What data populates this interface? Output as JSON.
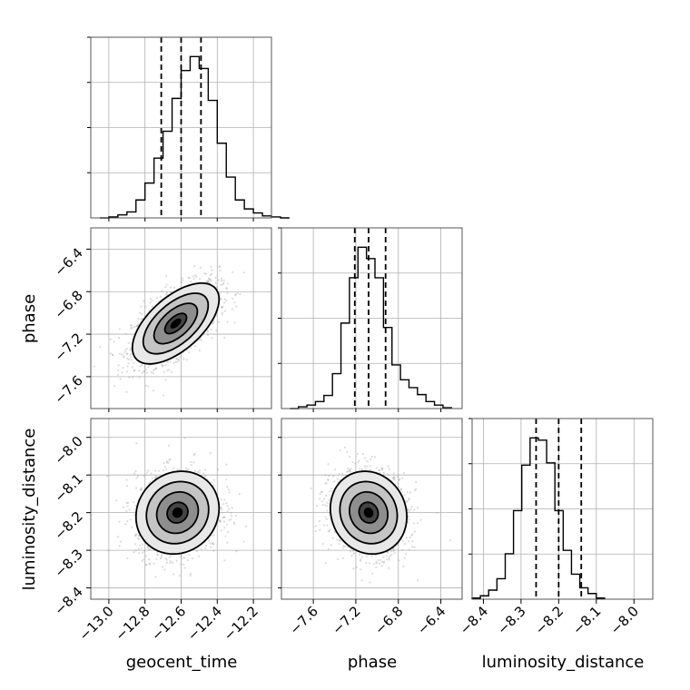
{
  "chart_data": {
    "type": "corner",
    "parameters": [
      {
        "name": "geocent_time",
        "range": [
          -13.1,
          -12.1
        ],
        "ticks": [
          -13.0,
          -12.8,
          -12.6,
          -12.4,
          -12.2
        ],
        "tick_labels": [
          "−13.0",
          "−12.8",
          "−12.6",
          "−12.4",
          "−12.2"
        ],
        "quantiles": [
          -12.71,
          -12.6,
          -12.49
        ],
        "hist_bins": [
          -13.07,
          -12.9
        ],
        "hist_values": [
          0,
          1,
          3,
          6,
          18,
          35,
          60,
          87,
          120,
          148,
          162,
          150,
          118,
          75,
          41,
          18,
          9,
          5,
          2,
          1,
          0
        ],
        "hist_edges_start": -13.05,
        "hist_bin_width": 0.05
      },
      {
        "name": "phase",
        "range": [
          -7.9,
          -6.2
        ],
        "ticks": [
          -7.6,
          -7.2,
          -6.8,
          -6.4
        ],
        "tick_labels": [
          "−7.6",
          "−7.2",
          "−6.8",
          "−6.4"
        ],
        "quantiles": [
          -7.21,
          -7.08,
          -6.92
        ],
        "hist_values": [
          0,
          2,
          4,
          8,
          15,
          40,
          98,
          150,
          185,
          172,
          150,
          93,
          50,
          33,
          24,
          16,
          8,
          4,
          1
        ],
        "hist_edges_start": -7.82,
        "hist_bin_width": 0.08
      },
      {
        "name": "luminosity_distance",
        "range": [
          -8.43,
          -7.95
        ],
        "ticks": [
          -8.4,
          -8.3,
          -8.2,
          -8.1,
          -8.0
        ],
        "tick_labels": [
          "−8.4",
          "−8.3",
          "−8.2",
          "−8.1",
          "−8.0"
        ],
        "quantiles": [
          -8.26,
          -8.2,
          -8.14
        ],
        "hist_values": [
          1,
          3,
          8,
          18,
          40,
          78,
          118,
          142,
          140,
          120,
          78,
          43,
          22,
          10,
          5,
          1
        ],
        "hist_edges_start": -8.43,
        "hist_bin_width": 0.022
      }
    ],
    "pairs": [
      {
        "x": "geocent_time",
        "y": "phase",
        "center": [
          -12.63,
          -7.1
        ],
        "sigma": [
          0.12,
          0.19
        ],
        "rho": 0.6
      },
      {
        "x": "geocent_time",
        "y": "luminosity_distance",
        "center": [
          -12.62,
          -8.2
        ],
        "sigma": [
          0.115,
          0.055
        ],
        "rho": 0.1
      },
      {
        "x": "phase",
        "y": "luminosity_distance",
        "center": [
          -7.08,
          -8.2
        ],
        "sigma": [
          0.18,
          0.055
        ],
        "rho": -0.1
      }
    ],
    "contour_levels_sigma": [
      0.5,
      1.0,
      1.5,
      2.0
    ],
    "grid": true
  }
}
